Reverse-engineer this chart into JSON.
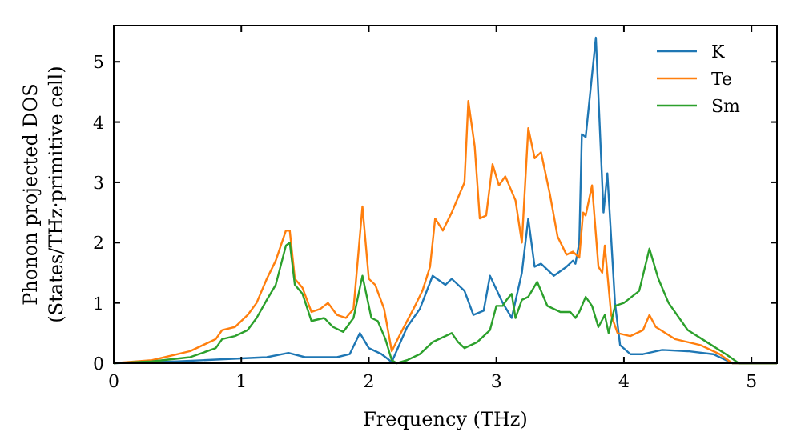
{
  "chart_data": {
    "type": "line",
    "xlabel": "Frequency (THz)",
    "ylabel": "Phonon projected DOS\n(States/THz·primitive cell)",
    "xlim": [
      0,
      5.2
    ],
    "ylim": [
      0,
      5.6
    ],
    "xticks": [
      0,
      1,
      2,
      3,
      4,
      5
    ],
    "yticks": [
      0,
      1,
      2,
      3,
      4,
      5
    ],
    "legend": "top right",
    "grid": false,
    "series": [
      {
        "name": "K",
        "color": "#1f77b4",
        "x": [
          0,
          0.5,
          1.0,
          1.2,
          1.37,
          1.5,
          1.75,
          1.85,
          1.93,
          2.0,
          2.1,
          2.18,
          2.3,
          2.4,
          2.5,
          2.6,
          2.65,
          2.75,
          2.82,
          2.9,
          2.95,
          3.05,
          3.12,
          3.2,
          3.25,
          3.3,
          3.35,
          3.45,
          3.55,
          3.6,
          3.62,
          3.65,
          3.67,
          3.7,
          3.78,
          3.84,
          3.87,
          3.93,
          3.97,
          4.05,
          4.15,
          4.3,
          4.5,
          4.7,
          4.85,
          5.2
        ],
        "values": [
          0,
          0.03,
          0.08,
          0.1,
          0.17,
          0.1,
          0.1,
          0.15,
          0.5,
          0.25,
          0.15,
          0.02,
          0.6,
          0.9,
          1.45,
          1.3,
          1.4,
          1.2,
          0.8,
          0.87,
          1.45,
          1.0,
          0.75,
          1.5,
          2.4,
          1.6,
          1.65,
          1.45,
          1.6,
          1.7,
          1.65,
          2.0,
          3.8,
          3.75,
          5.4,
          2.5,
          3.15,
          1.0,
          0.3,
          0.15,
          0.15,
          0.22,
          0.2,
          0.15,
          0,
          0
        ]
      },
      {
        "name": "Te",
        "color": "#ff7f0e",
        "x": [
          0,
          0.3,
          0.6,
          0.8,
          0.85,
          0.95,
          1.05,
          1.12,
          1.2,
          1.27,
          1.35,
          1.38,
          1.42,
          1.48,
          1.55,
          1.62,
          1.68,
          1.75,
          1.82,
          1.88,
          1.95,
          2.0,
          2.05,
          2.12,
          2.18,
          2.25,
          2.35,
          2.42,
          2.48,
          2.52,
          2.58,
          2.65,
          2.75,
          2.78,
          2.83,
          2.87,
          2.92,
          2.97,
          3.02,
          3.07,
          3.15,
          3.2,
          3.25,
          3.3,
          3.35,
          3.42,
          3.48,
          3.55,
          3.6,
          3.65,
          3.68,
          3.7,
          3.75,
          3.8,
          3.83,
          3.85,
          3.9,
          3.95,
          4.05,
          4.15,
          4.2,
          4.25,
          4.4,
          4.6,
          4.75,
          4.85,
          5.2
        ],
        "values": [
          0,
          0.05,
          0.2,
          0.4,
          0.55,
          0.6,
          0.8,
          1.0,
          1.4,
          1.7,
          2.2,
          2.2,
          1.4,
          1.25,
          0.85,
          0.9,
          1.0,
          0.8,
          0.75,
          0.9,
          2.6,
          1.4,
          1.3,
          0.9,
          0.2,
          0.5,
          0.9,
          1.2,
          1.6,
          2.4,
          2.2,
          2.5,
          3.0,
          4.35,
          3.6,
          2.4,
          2.45,
          3.3,
          2.95,
          3.1,
          2.7,
          2.0,
          3.9,
          3.4,
          3.5,
          2.8,
          2.1,
          1.8,
          1.85,
          1.75,
          2.5,
          2.45,
          2.95,
          1.6,
          1.5,
          1.95,
          0.8,
          0.5,
          0.45,
          0.55,
          0.8,
          0.6,
          0.4,
          0.3,
          0.15,
          0,
          0
        ]
      },
      {
        "name": "Sm",
        "color": "#2ca02c",
        "x": [
          0,
          0.3,
          0.6,
          0.8,
          0.85,
          0.95,
          1.05,
          1.12,
          1.2,
          1.27,
          1.35,
          1.38,
          1.42,
          1.48,
          1.55,
          1.65,
          1.72,
          1.8,
          1.88,
          1.95,
          2.02,
          2.07,
          2.13,
          2.18,
          2.22,
          2.3,
          2.4,
          2.5,
          2.6,
          2.65,
          2.7,
          2.75,
          2.85,
          2.95,
          3.0,
          3.05,
          3.08,
          3.12,
          3.15,
          3.2,
          3.25,
          3.32,
          3.4,
          3.5,
          3.58,
          3.62,
          3.65,
          3.7,
          3.75,
          3.8,
          3.85,
          3.88,
          3.93,
          4.0,
          4.12,
          4.2,
          4.27,
          4.35,
          4.5,
          4.65,
          4.8,
          4.9,
          5.2
        ],
        "values": [
          0,
          0.03,
          0.1,
          0.25,
          0.4,
          0.45,
          0.55,
          0.75,
          1.05,
          1.3,
          1.95,
          2.0,
          1.3,
          1.15,
          0.7,
          0.75,
          0.6,
          0.52,
          0.75,
          1.45,
          0.75,
          0.7,
          0.4,
          0.05,
          0,
          0.05,
          0.15,
          0.35,
          0.45,
          0.5,
          0.35,
          0.25,
          0.35,
          0.55,
          0.95,
          0.95,
          1.05,
          1.15,
          0.75,
          1.05,
          1.1,
          1.35,
          0.95,
          0.85,
          0.85,
          0.75,
          0.85,
          1.1,
          0.95,
          0.6,
          0.8,
          0.5,
          0.95,
          1.0,
          1.2,
          1.9,
          1.4,
          1.0,
          0.55,
          0.35,
          0.15,
          0,
          0
        ]
      }
    ]
  }
}
